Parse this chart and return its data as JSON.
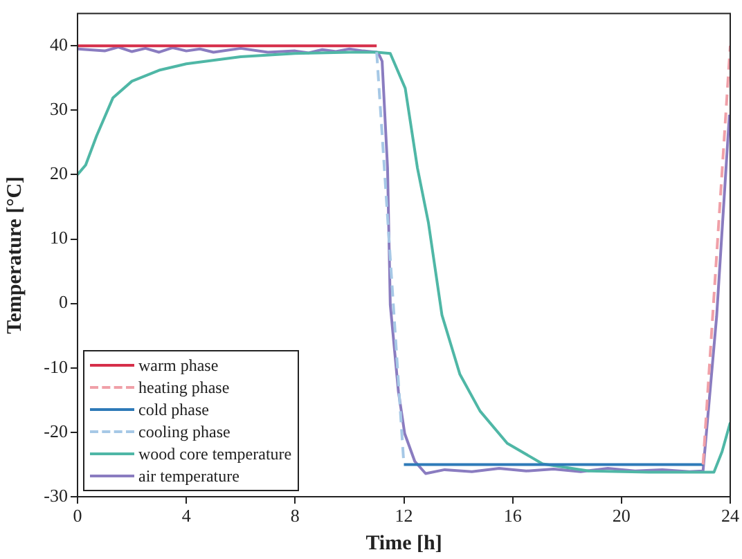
{
  "chart_data": {
    "type": "line",
    "xlabel": "Time [h]",
    "ylabel": "Temperature [°C]",
    "xlim": [
      0,
      24
    ],
    "ylim": [
      -30,
      45
    ],
    "xticks": [
      0,
      4,
      8,
      12,
      16,
      20,
      24
    ],
    "yticks": [
      -30,
      -20,
      -10,
      0,
      10,
      20,
      30,
      40
    ],
    "grid": false,
    "legend": "bottom left",
    "marker": "none",
    "series": [
      {
        "name": "warm phase",
        "color": "#d62f4a",
        "line_style": "solid",
        "x": [
          0,
          11
        ],
        "values": [
          40,
          40
        ]
      },
      {
        "name": "heating phase",
        "color": "#f0a0a8",
        "line_style": "dashed",
        "x": [
          23,
          24
        ],
        "values": [
          -25,
          40
        ]
      },
      {
        "name": "cold phase",
        "color": "#2e7ab8",
        "line_style": "solid",
        "x": [
          12,
          23
        ],
        "values": [
          -25,
          -25
        ]
      },
      {
        "name": "cooling phase",
        "color": "#a6c8e6",
        "line_style": "dashed",
        "x": [
          11,
          12
        ],
        "values": [
          39,
          -25
        ]
      },
      {
        "name": "wood core temperature",
        "color": "#4fb7a6",
        "line_style": "solid",
        "x": [
          0,
          0.3,
          0.7,
          1.3,
          2,
          3,
          4,
          6,
          8,
          10,
          11,
          11.5,
          12.05,
          12.5,
          12.9,
          13.4,
          14.06,
          14.8,
          15.8,
          17.1,
          18.8,
          21,
          23.4,
          23.7,
          24
        ],
        "values": [
          20,
          21.5,
          26,
          31.9,
          34.5,
          36.2,
          37.2,
          38.3,
          38.8,
          39,
          39,
          38.8,
          33.4,
          21,
          12.6,
          -1.8,
          -11,
          -16.7,
          -21.7,
          -24.9,
          -26,
          -26.2,
          -26.2,
          -23,
          -18.5
        ]
      },
      {
        "name": "air temperature",
        "color": "#8a7cc0",
        "line_style": "solid",
        "x": [
          0,
          1,
          1.5,
          2,
          2.5,
          3,
          3.5,
          4,
          4.5,
          5,
          6,
          7,
          8,
          8.5,
          9,
          9.5,
          10,
          10.5,
          11,
          11.1,
          11.2,
          11.4,
          11.5,
          11.8,
          12.03,
          12.4,
          12.8,
          13.5,
          14.5,
          15.5,
          16.5,
          17.5,
          18.5,
          19.5,
          20.5,
          21.5,
          22.5,
          23,
          23.5,
          23.97
        ],
        "values": [
          39.5,
          39.2,
          39.8,
          39.1,
          39.6,
          39,
          39.7,
          39.2,
          39.5,
          39,
          39.6,
          39,
          39.2,
          38.9,
          39.4,
          39.1,
          39.5,
          39.2,
          39,
          38.5,
          37.6,
          21,
          -0.2,
          -13.7,
          -20.2,
          -24.5,
          -26.4,
          -25.8,
          -26.1,
          -25.6,
          -26,
          -25.7,
          -26.1,
          -25.6,
          -26,
          -25.8,
          -26.1,
          -26,
          -2,
          29.3
        ]
      }
    ]
  }
}
